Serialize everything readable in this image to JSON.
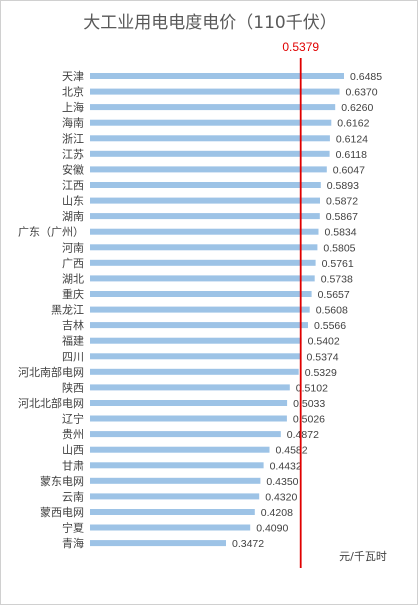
{
  "chart_data": {
    "type": "bar",
    "orientation": "horizontal",
    "title": "大工业用电电度电价（110千伏）",
    "unit": "元/千瓦时",
    "categories": [
      "天津",
      "北京",
      "上海",
      "海南",
      "浙江",
      "江苏",
      "安徽",
      "江西",
      "山东",
      "湖南",
      "广东（广州）",
      "河南",
      "广西",
      "湖北",
      "重庆",
      "黑龙江",
      "吉林",
      "福建",
      "四川",
      "河北南部电网",
      "陕西",
      "河北北部电网",
      "辽宁",
      "贵州",
      "山西",
      "甘肃",
      "蒙东电网",
      "云南",
      "蒙西电网",
      "宁夏",
      "青海"
    ],
    "values": [
      0.6485,
      0.637,
      0.626,
      0.6162,
      0.6124,
      0.6118,
      0.6047,
      0.5893,
      0.5872,
      0.5867,
      0.5834,
      0.5805,
      0.5761,
      0.5738,
      0.5657,
      0.5608,
      0.5566,
      0.5402,
      0.5374,
      0.5329,
      0.5102,
      0.5033,
      0.5026,
      0.4872,
      0.4582,
      0.4432,
      0.435,
      0.432,
      0.4208,
      0.409,
      0.3472
    ],
    "value_labels": [
      "0.6485",
      "0.6370",
      "0.6260",
      "0.6162",
      "0.6124",
      "0.6118",
      "0.6047",
      "0.5893",
      "0.5872",
      "0.5867",
      "0.5834",
      "0.5805",
      "0.5761",
      "0.5738",
      "0.5657",
      "0.5608",
      "0.5566",
      "0.5402",
      "0.5374",
      "0.5329",
      "0.5102",
      "0.5033",
      "0.5026",
      "0.4872",
      "0.4582",
      "0.4432",
      "0.4350",
      "0.4320",
      "0.4208",
      "0.4090",
      "0.3472"
    ],
    "reference_line": {
      "value": 0.5379,
      "label": "0.5379"
    },
    "xlim": [
      0,
      0.6485
    ],
    "grid": false,
    "legend": "none",
    "colors": {
      "bar": "#9dc3e6",
      "reference": "#e00000"
    }
  }
}
